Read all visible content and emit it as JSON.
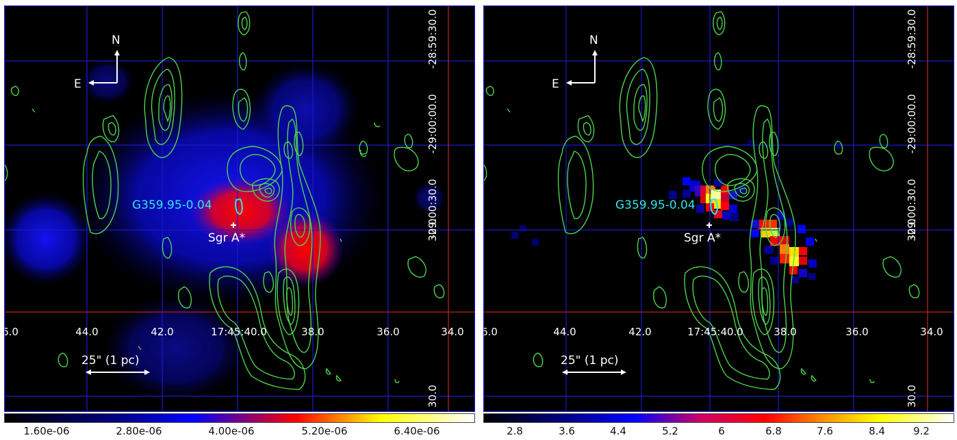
{
  "left_panel": {
    "north_label": "N",
    "east_label": "E",
    "source_label": "G359.95-0.04",
    "sgr_label": "Sgr A*",
    "scale_label": "25\" (1 pc)",
    "ra_ticks": [
      "6.0",
      "44.0",
      "42.0",
      "17:45:40.0",
      "38.0",
      "36.0",
      "34.0"
    ],
    "dec_ticks": [
      "-28:59:30.0",
      "-29:00:00.0",
      "-29:00:30.0",
      "30.0",
      "30.0"
    ],
    "colorbar_ticks": [
      "1.60e-06",
      "2.80e-06",
      "4.00e-06",
      "5.20e-06",
      "6.40e-06"
    ]
  },
  "right_panel": {
    "north_label": "N",
    "east_label": "E",
    "source_label": "G359.95-0.04",
    "sgr_label": "Sgr A*",
    "scale_label": "25\" (1 pc)",
    "ra_ticks": [
      "6.0",
      "44.0",
      "42.0",
      "17:45:40.0",
      "38.0",
      "36.0",
      "34.0"
    ],
    "dec_ticks": [
      "-28:59:30.0",
      "-29:00:00.0",
      "-29:00:30.0",
      "30.0",
      "30.0"
    ],
    "colorbar_ticks": [
      "2.8",
      "3.6",
      "4.4",
      "5.2",
      "6",
      "6.8",
      "7.6",
      "8.4",
      "9.2"
    ]
  },
  "colors": {
    "grid": "#1a1acc",
    "crosshair": "#b3261e",
    "contour": "#4ed54e",
    "source_label": "#2ee6f0",
    "text": "#ffffff"
  }
}
